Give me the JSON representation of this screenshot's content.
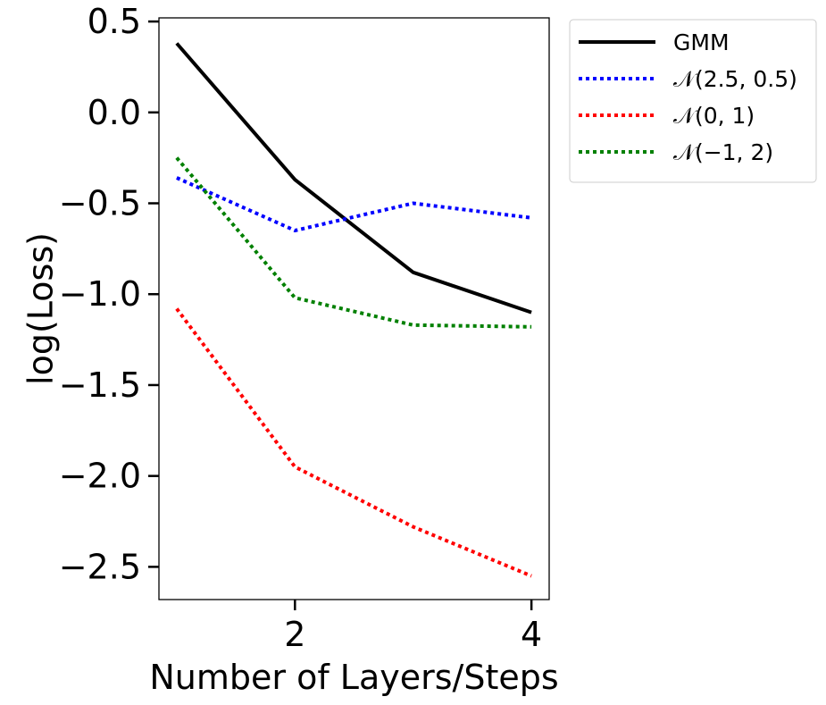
{
  "chart_data": {
    "type": "line",
    "title": "",
    "xlabel": "Number of Layers/Steps",
    "ylabel": "log(Loss)",
    "xlim": [
      0.85,
      4.15
    ],
    "ylim": [
      -2.68,
      0.52
    ],
    "x_ticks": [
      {
        "value": 2,
        "label": "2"
      },
      {
        "value": 4,
        "label": "4"
      }
    ],
    "y_ticks": [
      {
        "value": 0.5,
        "label": "0.5"
      },
      {
        "value": 0.0,
        "label": "0.0"
      },
      {
        "value": -0.5,
        "label": "−0.5"
      },
      {
        "value": -1.0,
        "label": "−1.0"
      },
      {
        "value": -1.5,
        "label": "−1.5"
      },
      {
        "value": -2.0,
        "label": "−2.0"
      },
      {
        "value": -2.5,
        "label": "−2.5"
      }
    ],
    "grid": false,
    "legend_position": "outside-top-right",
    "x": [
      1,
      2,
      3,
      4
    ],
    "series": [
      {
        "name": "GMM",
        "values": [
          0.38,
          -0.37,
          -0.88,
          -1.1
        ],
        "color": "#000000",
        "style": "solid"
      },
      {
        "name": "𝒩(2.5, 0.5)",
        "values": [
          -0.36,
          -0.65,
          -0.5,
          -0.58
        ],
        "color": "#0000ff",
        "style": "dotted"
      },
      {
        "name": "𝒩(0, 1)",
        "values": [
          -1.08,
          -1.95,
          -2.28,
          -2.55
        ],
        "color": "#ff0000",
        "style": "dotted"
      },
      {
        "name": "𝒩(−1, 2)",
        "values": [
          -0.25,
          -1.02,
          -1.17,
          -1.18
        ],
        "color": "#008000",
        "style": "dotted"
      }
    ]
  }
}
